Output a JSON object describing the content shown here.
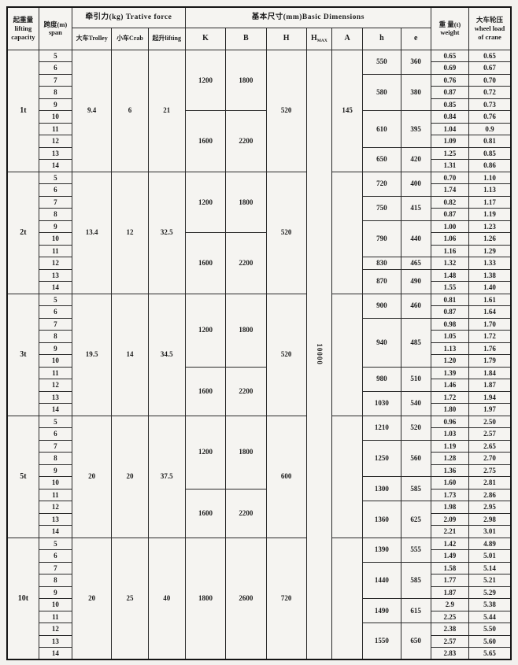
{
  "page": {
    "kind": "scanned crane specification table",
    "colors": {
      "background": "#f2f1ee",
      "border": "#2a2a2a",
      "outer_border": "#141414",
      "text": "#1b1b1b"
    }
  },
  "header": {
    "capacity": "起重量\nlifting\ncapacity",
    "span": "跨度(m)\nspan",
    "traction_group": "牵引力(kg) Trative force",
    "trolley": "大车Trolley",
    "crab": "小车Crab",
    "lifting": "起升lifting",
    "dimensions_group": "基本尺寸(mm)Basic Dimensions",
    "k": "K",
    "b": "B",
    "h_upper": "H",
    "hmax_main": "H",
    "hmax_sub": "MAX",
    "a": "A",
    "h_lower": "h",
    "e": "e",
    "weight": "重 量(t)\nweight",
    "wheel": "大车轮压\nwheel load\nof crane"
  },
  "hmax_value": "10000",
  "groups": [
    {
      "capacity": "1t",
      "spans": [
        "5",
        "6",
        "7",
        "8",
        "9",
        "10",
        "11",
        "12",
        "13",
        "14"
      ],
      "trolley": "9.4",
      "crab": "6",
      "lifting": "21",
      "kb": [
        {
          "rows": 5,
          "k": "1200",
          "b": "1800"
        },
        {
          "rows": 5,
          "k": "1600",
          "b": "2200"
        }
      ],
      "H": "520",
      "A": "145",
      "he": [
        {
          "rows": 2,
          "h": "550",
          "e": "360"
        },
        {
          "rows": 3,
          "h": "580",
          "e": "380"
        },
        {
          "rows": 3,
          "h": "610",
          "e": "395"
        },
        {
          "rows": 2,
          "h": "650",
          "e": "420"
        }
      ],
      "weight": [
        "0.65",
        "0.69",
        "0.76",
        "0.87",
        "0.85",
        "0.84",
        "1.04",
        "1.09",
        "1.25",
        "1.31"
      ],
      "wheel": [
        "0.65",
        "0.67",
        "0.70",
        "0.72",
        "0.73",
        "0.76",
        "0.9",
        "0.81",
        "0.85",
        "0.86"
      ]
    },
    {
      "capacity": "2t",
      "spans": [
        "5",
        "6",
        "7",
        "8",
        "9",
        "10",
        "11",
        "12",
        "13",
        "14"
      ],
      "trolley": "13.4",
      "crab": "12",
      "lifting": "32.5",
      "kb": [
        {
          "rows": 5,
          "k": "1200",
          "b": "1800"
        },
        {
          "rows": 5,
          "k": "1600",
          "b": "2200"
        }
      ],
      "H": "520",
      "A": "",
      "he": [
        {
          "rows": 2,
          "h": "720",
          "e": "400"
        },
        {
          "rows": 2,
          "h": "750",
          "e": "415"
        },
        {
          "rows": 3,
          "h": "790",
          "e": "440"
        },
        {
          "rows": 1,
          "h": "830",
          "e": "465"
        },
        {
          "rows": 2,
          "h": "870",
          "e": "490"
        }
      ],
      "weight": [
        "0.70",
        "1.74",
        "0.82",
        "0.87",
        "1.00",
        "1.06",
        "1.16",
        "1.32",
        "1.48",
        "1.55"
      ],
      "wheel": [
        "1.10",
        "1.13",
        "1.17",
        "1.19",
        "1.23",
        "1.26",
        "1.29",
        "1.33",
        "1.38",
        "1.40"
      ]
    },
    {
      "capacity": "3t",
      "spans": [
        "5",
        "6",
        "7",
        "8",
        "9",
        "10",
        "11",
        "12",
        "13",
        "14"
      ],
      "trolley": "19.5",
      "crab": "14",
      "lifting": "34.5",
      "kb": [
        {
          "rows": 6,
          "k": "1200",
          "b": "1800"
        },
        {
          "rows": 4,
          "k": "1600",
          "b": "2200"
        }
      ],
      "H": "520",
      "A": "",
      "he": [
        {
          "rows": 2,
          "h": "900",
          "e": "460"
        },
        {
          "rows": 4,
          "h": "940",
          "e": "485"
        },
        {
          "rows": 2,
          "h": "980",
          "e": "510"
        },
        {
          "rows": 2,
          "h": "1030",
          "e": "540"
        }
      ],
      "weight": [
        "0.81",
        "0.87",
        "0.98",
        "1.05",
        "1.13",
        "1.20",
        "1.39",
        "1.46",
        "1.72",
        "1.80"
      ],
      "wheel": [
        "1.61",
        "1.64",
        "1.70",
        "1.72",
        "1.76",
        "1.79",
        "1.84",
        "1.87",
        "1.94",
        "1.97"
      ]
    },
    {
      "capacity": "5t",
      "spans": [
        "5",
        "6",
        "7",
        "8",
        "9",
        "10",
        "11",
        "12",
        "13",
        "14"
      ],
      "trolley": "20",
      "crab": "20",
      "lifting": "37.5",
      "kb": [
        {
          "rows": 6,
          "k": "1200",
          "b": "1800"
        },
        {
          "rows": 4,
          "k": "1600",
          "b": "2200"
        }
      ],
      "H": "600",
      "A": "",
      "he": [
        {
          "rows": 2,
          "h": "1210",
          "e": "520"
        },
        {
          "rows": 3,
          "h": "1250",
          "e": "560"
        },
        {
          "rows": 2,
          "h": "1300",
          "e": "585"
        },
        {
          "rows": 3,
          "h": "1360",
          "e": "625"
        }
      ],
      "weight": [
        "0.96",
        "1.03",
        "1.19",
        "1.28",
        "1.36",
        "1.60",
        "1.73",
        "1.98",
        "2.09",
        "2.21"
      ],
      "wheel": [
        "2.50",
        "2.57",
        "2.65",
        "2.70",
        "2.75",
        "2.81",
        "2.86",
        "2.95",
        "2.98",
        "3.01"
      ]
    },
    {
      "capacity": "10t",
      "spans": [
        "5",
        "6",
        "7",
        "8",
        "9",
        "10",
        "11",
        "12",
        "13",
        "14"
      ],
      "trolley": "20",
      "crab": "25",
      "lifting": "40",
      "kb": [
        {
          "rows": 10,
          "k": "1800",
          "b": "2600"
        }
      ],
      "H": "720",
      "A": "",
      "he": [
        {
          "rows": 2,
          "h": "1390",
          "e": "555"
        },
        {
          "rows": 3,
          "h": "1440",
          "e": "585"
        },
        {
          "rows": 2,
          "h": "1490",
          "e": "615"
        },
        {
          "rows": 3,
          "h": "1550",
          "e": "650"
        }
      ],
      "weight": [
        "1.42",
        "1.49",
        "1.58",
        "1.77",
        "1.87",
        "2.9",
        "2.25",
        "2.38",
        "2.57",
        "2.83"
      ],
      "wheel": [
        "4.89",
        "5.01",
        "5.14",
        "5.21",
        "5.29",
        "5.38",
        "5.44",
        "5.50",
        "5.60",
        "5.65"
      ]
    }
  ]
}
